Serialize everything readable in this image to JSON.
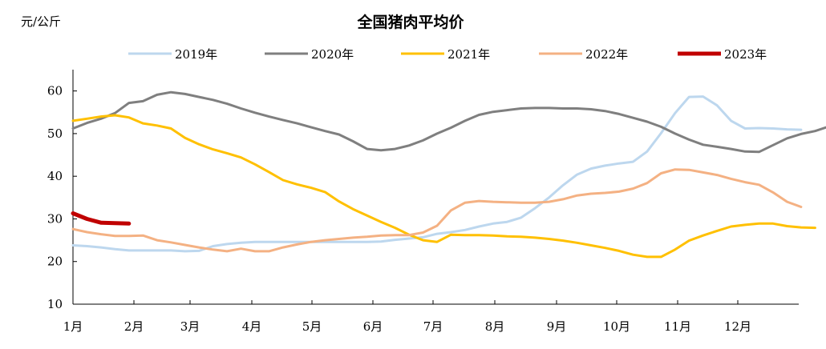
{
  "chart_data": {
    "type": "line",
    "title": "全国猪肉平均价",
    "ylabel": "元/公斤",
    "xlabel": "",
    "ylim": [
      10,
      65
    ],
    "yticks": [
      10,
      20,
      30,
      40,
      50,
      60
    ],
    "month_labels": [
      "1月",
      "2月",
      "3月",
      "4月",
      "5月",
      "6月",
      "7月",
      "8月",
      "9月",
      "10月",
      "11月",
      "12月"
    ],
    "x_unit": "week of year (1–52)",
    "legend_position": "top",
    "series": [
      {
        "name": "2019年",
        "color": "#BDD7EE",
        "width": 3,
        "points": [
          [
            1,
            23.8
          ],
          [
            2,
            23.6
          ],
          [
            3,
            23.3
          ],
          [
            4,
            22.9
          ],
          [
            5,
            22.6
          ],
          [
            6,
            22.6
          ],
          [
            7,
            22.6
          ],
          [
            8,
            22.6
          ],
          [
            9,
            22.4
          ],
          [
            10,
            22.5
          ],
          [
            11,
            23.6
          ],
          [
            12,
            24.1
          ],
          [
            13,
            24.4
          ],
          [
            14,
            24.6
          ],
          [
            15,
            24.6
          ],
          [
            16,
            24.6
          ],
          [
            17,
            24.6
          ],
          [
            18,
            24.6
          ],
          [
            19,
            24.6
          ],
          [
            20,
            24.6
          ],
          [
            21,
            24.6
          ],
          [
            22,
            24.6
          ],
          [
            23,
            24.7
          ],
          [
            24,
            25.1
          ],
          [
            25,
            25.4
          ],
          [
            26,
            25.7
          ],
          [
            27,
            26.5
          ],
          [
            28,
            26.9
          ],
          [
            29,
            27.4
          ],
          [
            30,
            28.2
          ],
          [
            31,
            28.9
          ],
          [
            32,
            29.3
          ],
          [
            33,
            30.3
          ],
          [
            34,
            32.5
          ],
          [
            35,
            35.0
          ],
          [
            36,
            37.9
          ],
          [
            37,
            40.4
          ],
          [
            38,
            41.8
          ],
          [
            39,
            42.5
          ],
          [
            40,
            43.0
          ],
          [
            41,
            43.4
          ],
          [
            42,
            45.8
          ],
          [
            43,
            50.1
          ],
          [
            44,
            54.8
          ],
          [
            45,
            58.6
          ],
          [
            46,
            58.7
          ],
          [
            47,
            56.6
          ],
          [
            48,
            53.0
          ],
          [
            49,
            51.2
          ],
          [
            50,
            51.3
          ],
          [
            51,
            51.2
          ],
          [
            52,
            51.0
          ],
          [
            53,
            50.9
          ]
        ]
      },
      {
        "name": "2020年",
        "color": "#7F7F7F",
        "width": 3,
        "points": [
          [
            1,
            51.2
          ],
          [
            2,
            52.5
          ],
          [
            3,
            53.5
          ],
          [
            4,
            54.8
          ],
          [
            5,
            57.2
          ],
          [
            6,
            57.6
          ],
          [
            7,
            59.1
          ],
          [
            8,
            59.7
          ],
          [
            9,
            59.3
          ],
          [
            10,
            58.6
          ],
          [
            11,
            57.9
          ],
          [
            12,
            57.0
          ],
          [
            13,
            55.9
          ],
          [
            14,
            54.9
          ],
          [
            15,
            54.0
          ],
          [
            16,
            53.2
          ],
          [
            17,
            52.4
          ],
          [
            18,
            51.5
          ],
          [
            19,
            50.6
          ],
          [
            20,
            49.8
          ],
          [
            21,
            48.2
          ],
          [
            22,
            46.4
          ],
          [
            23,
            46.1
          ],
          [
            24,
            46.4
          ],
          [
            25,
            47.2
          ],
          [
            26,
            48.4
          ],
          [
            27,
            50.0
          ],
          [
            28,
            51.4
          ],
          [
            29,
            53.0
          ],
          [
            30,
            54.4
          ],
          [
            31,
            55.1
          ],
          [
            32,
            55.5
          ],
          [
            33,
            55.9
          ],
          [
            34,
            56.0
          ],
          [
            35,
            56.0
          ],
          [
            36,
            55.9
          ],
          [
            37,
            55.9
          ],
          [
            38,
            55.7
          ],
          [
            39,
            55.3
          ],
          [
            40,
            54.6
          ],
          [
            41,
            53.7
          ],
          [
            42,
            52.8
          ],
          [
            43,
            51.6
          ],
          [
            44,
            50.0
          ],
          [
            45,
            48.6
          ],
          [
            46,
            47.4
          ],
          [
            47,
            46.9
          ],
          [
            48,
            46.4
          ],
          [
            49,
            45.8
          ],
          [
            50,
            45.7
          ],
          [
            51,
            47.3
          ],
          [
            52,
            48.9
          ],
          [
            53,
            49.9
          ],
          [
            54,
            50.6
          ],
          [
            55,
            51.7
          ]
        ]
      },
      {
        "name": "2021年",
        "color": "#FFC000",
        "width": 3,
        "points": [
          [
            1,
            53.0
          ],
          [
            2,
            53.5
          ],
          [
            3,
            54.0
          ],
          [
            4,
            54.3
          ],
          [
            5,
            53.8
          ],
          [
            6,
            52.4
          ],
          [
            7,
            51.9
          ],
          [
            8,
            51.2
          ],
          [
            9,
            49.0
          ],
          [
            10,
            47.5
          ],
          [
            11,
            46.3
          ],
          [
            12,
            45.4
          ],
          [
            13,
            44.4
          ],
          [
            14,
            42.8
          ],
          [
            15,
            41.0
          ],
          [
            16,
            39.1
          ],
          [
            17,
            38.1
          ],
          [
            18,
            37.3
          ],
          [
            19,
            36.3
          ],
          [
            20,
            34.1
          ],
          [
            21,
            32.3
          ],
          [
            22,
            30.8
          ],
          [
            23,
            29.3
          ],
          [
            24,
            27.9
          ],
          [
            25,
            26.3
          ],
          [
            26,
            25.0
          ],
          [
            27,
            24.6
          ],
          [
            28,
            26.3
          ],
          [
            29,
            26.2
          ],
          [
            30,
            26.2
          ],
          [
            31,
            26.1
          ],
          [
            32,
            25.9
          ],
          [
            33,
            25.8
          ],
          [
            34,
            25.6
          ],
          [
            35,
            25.3
          ],
          [
            36,
            24.9
          ],
          [
            37,
            24.4
          ],
          [
            38,
            23.8
          ],
          [
            39,
            23.2
          ],
          [
            40,
            22.5
          ],
          [
            41,
            21.6
          ],
          [
            42,
            21.1
          ],
          [
            43,
            21.1
          ],
          [
            44,
            22.8
          ],
          [
            45,
            24.9
          ],
          [
            46,
            26.1
          ],
          [
            47,
            27.2
          ],
          [
            48,
            28.2
          ],
          [
            49,
            28.6
          ],
          [
            50,
            28.9
          ],
          [
            51,
            28.9
          ],
          [
            52,
            28.3
          ],
          [
            53,
            28.0
          ],
          [
            54,
            27.9
          ]
        ]
      },
      {
        "name": "2022年",
        "color": "#F4B183",
        "width": 3,
        "points": [
          [
            1,
            27.6
          ],
          [
            2,
            26.9
          ],
          [
            3,
            26.4
          ],
          [
            4,
            26.0
          ],
          [
            5,
            26.0
          ],
          [
            6,
            26.1
          ],
          [
            7,
            25.0
          ],
          [
            8,
            24.5
          ],
          [
            9,
            23.9
          ],
          [
            10,
            23.3
          ],
          [
            11,
            22.8
          ],
          [
            12,
            22.4
          ],
          [
            13,
            23.0
          ],
          [
            14,
            22.4
          ],
          [
            15,
            22.4
          ],
          [
            16,
            23.3
          ],
          [
            17,
            24.0
          ],
          [
            18,
            24.6
          ],
          [
            19,
            25.0
          ],
          [
            20,
            25.3
          ],
          [
            21,
            25.6
          ],
          [
            22,
            25.8
          ],
          [
            23,
            26.1
          ],
          [
            24,
            26.2
          ],
          [
            25,
            26.2
          ],
          [
            26,
            26.8
          ],
          [
            27,
            28.4
          ],
          [
            28,
            32.0
          ],
          [
            29,
            33.8
          ],
          [
            30,
            34.2
          ],
          [
            31,
            34.0
          ],
          [
            32,
            33.9
          ],
          [
            33,
            33.8
          ],
          [
            34,
            33.8
          ],
          [
            35,
            34.0
          ],
          [
            36,
            34.6
          ],
          [
            37,
            35.5
          ],
          [
            38,
            35.9
          ],
          [
            39,
            36.1
          ],
          [
            40,
            36.4
          ],
          [
            41,
            37.1
          ],
          [
            42,
            38.4
          ],
          [
            43,
            40.7
          ],
          [
            44,
            41.6
          ],
          [
            45,
            41.5
          ],
          [
            46,
            40.9
          ],
          [
            47,
            40.3
          ],
          [
            48,
            39.4
          ],
          [
            49,
            38.6
          ],
          [
            50,
            38.0
          ],
          [
            51,
            36.2
          ],
          [
            52,
            34.0
          ],
          [
            53,
            32.8
          ]
        ]
      },
      {
        "name": "2023年",
        "color": "#C00000",
        "width": 5,
        "points": [
          [
            1,
            31.3
          ],
          [
            2,
            30.0
          ],
          [
            3,
            29.1
          ],
          [
            4,
            29.0
          ],
          [
            5,
            28.9
          ]
        ]
      }
    ]
  }
}
